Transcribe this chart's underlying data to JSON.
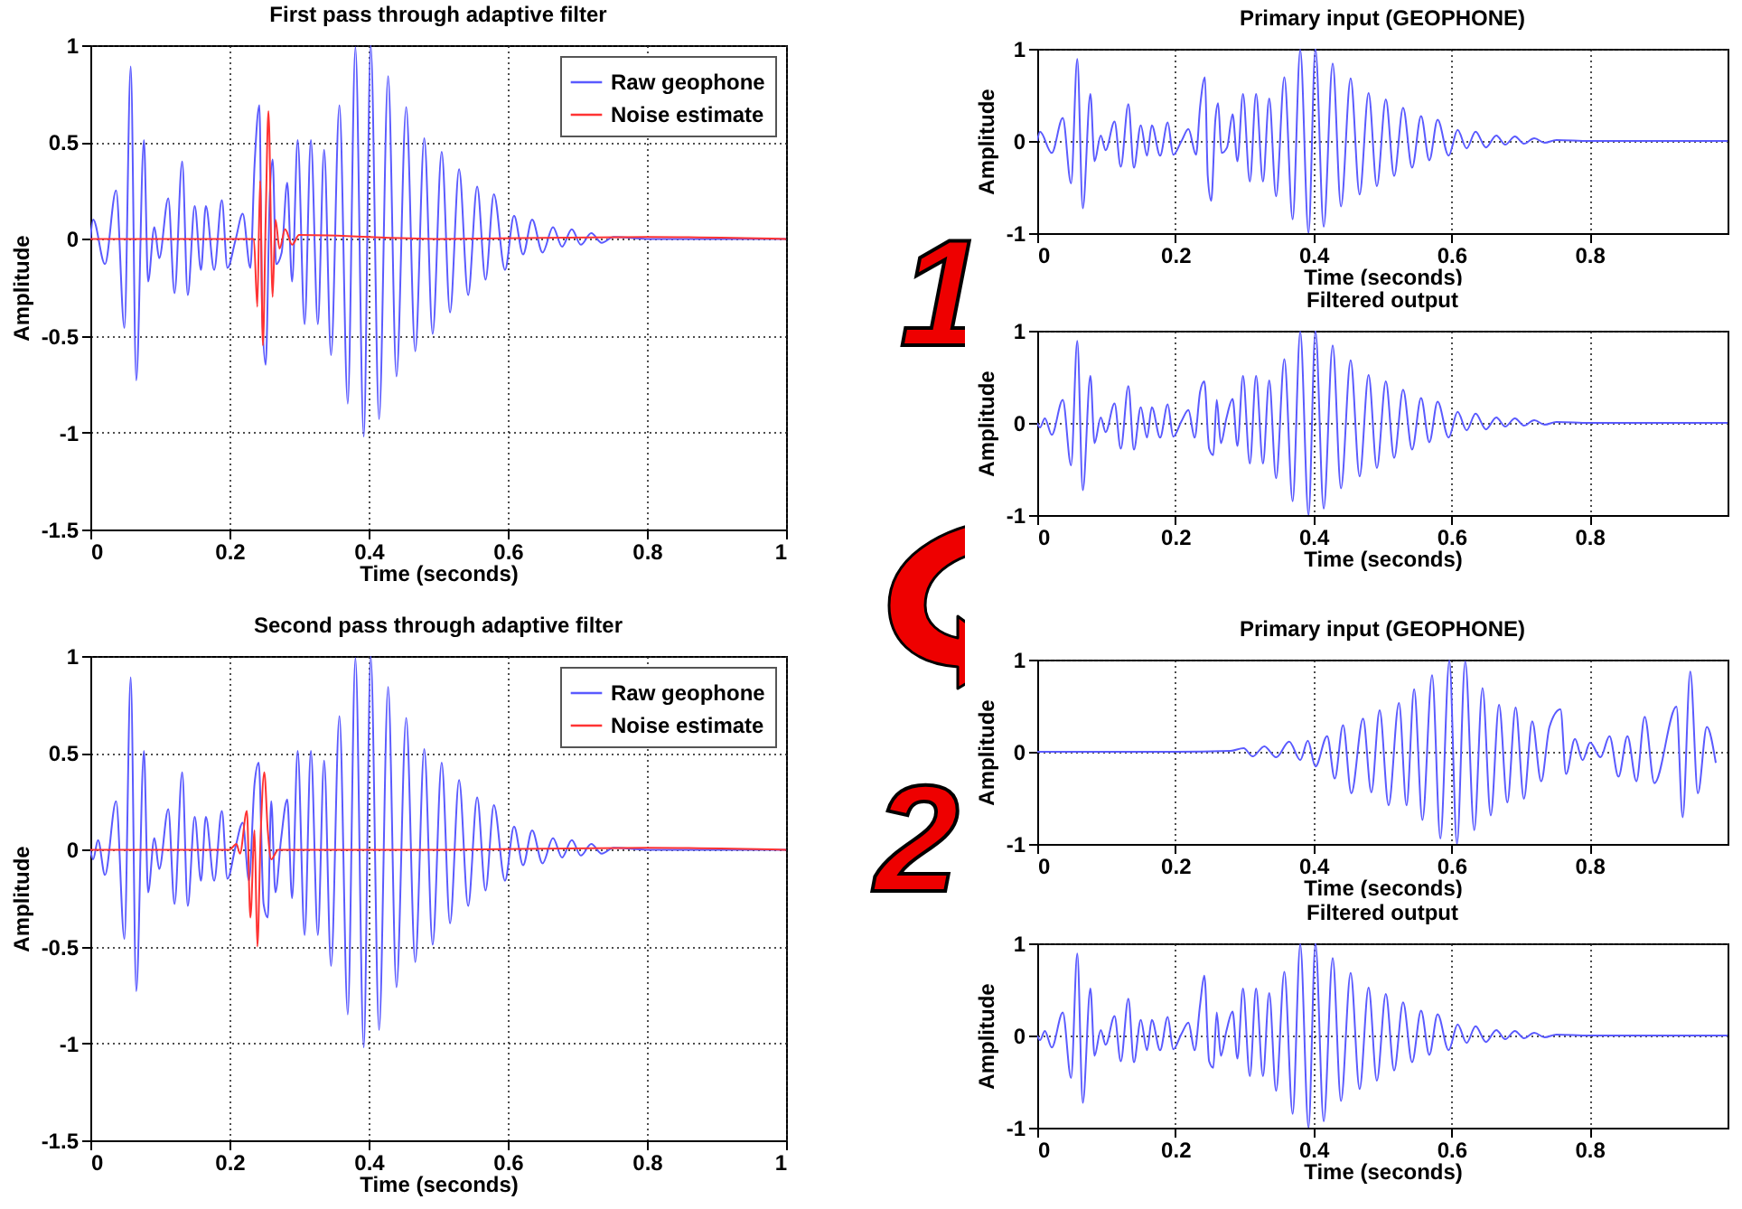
{
  "chart_data": [
    {
      "type": "line",
      "title": "First pass through adaptive filter",
      "xlabel": "Time (seconds)",
      "ylabel": "Amplitude",
      "xlim": [
        0,
        1
      ],
      "xticks": [
        0,
        0.2,
        0.4,
        0.6,
        0.8,
        1
      ],
      "ylim": [
        -1.5,
        1
      ],
      "yticks": [
        -1.5,
        -1,
        -0.5,
        0,
        0.5,
        1
      ],
      "grid": true,
      "legend": "top right",
      "series": [
        {
          "name": "Raw geophone",
          "color": "#5a5aff",
          "x": [
            0,
            0.004,
            0.021,
            0.037,
            0.049,
            0.058,
            0.066,
            0.077,
            0.083,
            0.092,
            0.099,
            0.112,
            0.121,
            0.132,
            0.14,
            0.15,
            0.159,
            0.166,
            0.178,
            0.189,
            0.197,
            0.209,
            0.219,
            0.23,
            0.236,
            0.243,
            0.247,
            0.252,
            0.258,
            0.262,
            0.267,
            0.275,
            0.283,
            0.29,
            0.298,
            0.308,
            0.317,
            0.327,
            0.336,
            0.346,
            0.358,
            0.37,
            0.381,
            0.393,
            0.403,
            0.415,
            0.428,
            0.44,
            0.454,
            0.467,
            0.48,
            0.492,
            0.505,
            0.517,
            0.53,
            0.543,
            0.556,
            0.568,
            0.58,
            0.596,
            0.609,
            0.622,
            0.635,
            0.65,
            0.665,
            0.678,
            0.692,
            0.705,
            0.72,
            0.735,
            0.752,
            0.8,
            0.9,
            1
          ],
          "values": [
            0,
            0.1,
            -0.13,
            0.25,
            -0.46,
            0.89,
            -0.73,
            0.51,
            -0.22,
            0.06,
            -0.1,
            0.21,
            -0.28,
            0.4,
            -0.29,
            0.17,
            -0.16,
            0.17,
            -0.16,
            0.2,
            -0.15,
            0,
            0.13,
            -0.15,
            0.38,
            0.69,
            -0.38,
            -0.65,
            0.23,
            0.41,
            -0.13,
            -0.07,
            0.29,
            -0.22,
            0.51,
            -0.44,
            0.51,
            -0.44,
            0.46,
            -0.6,
            0.69,
            -0.85,
            0.99,
            -1.02,
            1,
            -0.93,
            0.84,
            -0.71,
            0.68,
            -0.58,
            0.52,
            -0.49,
            0.45,
            -0.38,
            0.36,
            -0.29,
            0.27,
            -0.21,
            0.23,
            -0.16,
            0.12,
            -0.08,
            0.1,
            -0.07,
            0.06,
            -0.04,
            0.05,
            -0.03,
            0.03,
            -0.02,
            0.01,
            0,
            0,
            0
          ]
        },
        {
          "name": "Noise estimate",
          "color": "#ff3333",
          "x": [
            0,
            0.235,
            0.24,
            0.244,
            0.248,
            0.252,
            0.256,
            0.262,
            0.266,
            0.272,
            0.28,
            0.29,
            0.3,
            0.5,
            0.8,
            1
          ],
          "values": [
            0,
            0,
            -0.35,
            0.3,
            -0.55,
            0.1,
            0.66,
            -0.3,
            0.1,
            -0.05,
            0.05,
            -0.03,
            0.02,
            0,
            0.01,
            0
          ]
        }
      ]
    },
    {
      "type": "line",
      "title": "Second pass through adaptive filter",
      "xlabel": "Time (seconds)",
      "ylabel": "Amplitude",
      "xlim": [
        0,
        1
      ],
      "xticks": [
        0,
        0.2,
        0.4,
        0.6,
        0.8,
        1
      ],
      "ylim": [
        -1.5,
        1
      ],
      "yticks": [
        -1.5,
        -1,
        -0.5,
        0,
        0.5,
        1
      ],
      "grid": true,
      "legend": "top right",
      "series": [
        {
          "name": "Raw geophone",
          "color": "#5a5aff",
          "x": [
            0,
            0.004,
            0.011,
            0.021,
            0.037,
            0.049,
            0.058,
            0.066,
            0.077,
            0.083,
            0.092,
            0.099,
            0.112,
            0.121,
            0.132,
            0.14,
            0.15,
            0.159,
            0.166,
            0.178,
            0.189,
            0.197,
            0.209,
            0.219,
            0.228,
            0.236,
            0.242,
            0.249,
            0.255,
            0.26,
            0.266,
            0.274,
            0.283,
            0.29,
            0.298,
            0.308,
            0.317,
            0.327,
            0.336,
            0.346,
            0.358,
            0.37,
            0.381,
            0.393,
            0.403,
            0.415,
            0.428,
            0.44,
            0.454,
            0.467,
            0.48,
            0.492,
            0.505,
            0.517,
            0.53,
            0.543,
            0.556,
            0.568,
            0.58,
            0.596,
            0.609,
            0.622,
            0.635,
            0.65,
            0.665,
            0.678,
            0.692,
            0.705,
            0.72,
            0.735,
            0.752,
            0.8,
            0.9,
            1
          ],
          "values": [
            0,
            -0.05,
            0.05,
            -0.13,
            0.25,
            -0.46,
            0.89,
            -0.73,
            0.51,
            -0.22,
            0.06,
            -0.1,
            0.21,
            -0.28,
            0.4,
            -0.29,
            0.17,
            -0.16,
            0.17,
            -0.16,
            0.2,
            -0.15,
            0.02,
            0.14,
            -0.16,
            0.34,
            0.45,
            -0.28,
            -0.35,
            0.25,
            -0.22,
            0.05,
            0.26,
            -0.25,
            0.51,
            -0.44,
            0.51,
            -0.44,
            0.46,
            -0.6,
            0.69,
            -0.85,
            0.99,
            -1.02,
            1,
            -0.93,
            0.84,
            -0.71,
            0.68,
            -0.58,
            0.52,
            -0.49,
            0.45,
            -0.38,
            0.36,
            -0.29,
            0.27,
            -0.21,
            0.23,
            -0.16,
            0.12,
            -0.08,
            0.1,
            -0.07,
            0.06,
            -0.04,
            0.05,
            -0.03,
            0.03,
            -0.02,
            0.01,
            0,
            0,
            0
          ]
        },
        {
          "name": "Noise estimate",
          "color": "#ff3333",
          "x": [
            0,
            0.2,
            0.21,
            0.215,
            0.225,
            0.23,
            0.236,
            0.24,
            0.245,
            0.25,
            0.255,
            0.26,
            0.27,
            0.5,
            0.8,
            1
          ],
          "values": [
            0,
            0,
            0.03,
            -0.02,
            0.2,
            -0.35,
            0.1,
            -0.5,
            0.1,
            0.4,
            0.1,
            -0.05,
            0,
            0,
            0.01,
            0
          ]
        }
      ]
    },
    {
      "type": "line",
      "title": "Primary input (GEOPHONE)",
      "xlabel": "Time (seconds)",
      "ylabel": "Amplitude",
      "xlim": [
        0,
        1
      ],
      "xticks": [
        0,
        0.2,
        0.4,
        0.6,
        0.8
      ],
      "ylim": [
        -1,
        1
      ],
      "yticks": [
        -1,
        0,
        1
      ],
      "grid": true,
      "annotations": [
        "1"
      ],
      "series": [
        {
          "color": "#5a5aff",
          "x": [
            0,
            0.004,
            0.021,
            0.037,
            0.049,
            0.058,
            0.066,
            0.077,
            0.083,
            0.092,
            0.099,
            0.112,
            0.121,
            0.132,
            0.14,
            0.15,
            0.159,
            0.166,
            0.178,
            0.189,
            0.197,
            0.209,
            0.219,
            0.23,
            0.236,
            0.243,
            0.247,
            0.252,
            0.258,
            0.262,
            0.267,
            0.275,
            0.283,
            0.29,
            0.298,
            0.308,
            0.317,
            0.327,
            0.336,
            0.346,
            0.358,
            0.37,
            0.381,
            0.393,
            0.403,
            0.415,
            0.428,
            0.44,
            0.454,
            0.467,
            0.48,
            0.492,
            0.505,
            0.517,
            0.53,
            0.543,
            0.556,
            0.568,
            0.58,
            0.596,
            0.609,
            0.622,
            0.635,
            0.65,
            0.665,
            0.678,
            0.692,
            0.705,
            0.72,
            0.735,
            0.752,
            0.8,
            0.9,
            1
          ],
          "values": [
            0,
            0.1,
            -0.13,
            0.25,
            -0.46,
            0.89,
            -0.73,
            0.51,
            -0.22,
            0.06,
            -0.1,
            0.21,
            -0.28,
            0.4,
            -0.29,
            0.17,
            -0.16,
            0.17,
            -0.16,
            0.2,
            -0.15,
            0,
            0.13,
            -0.15,
            0.38,
            0.69,
            -0.38,
            -0.65,
            0.23,
            0.41,
            -0.13,
            -0.07,
            0.29,
            -0.22,
            0.51,
            -0.44,
            0.51,
            -0.44,
            0.46,
            -0.6,
            0.69,
            -0.85,
            0.99,
            -1,
            1,
            -0.93,
            0.84,
            -0.71,
            0.68,
            -0.58,
            0.52,
            -0.49,
            0.45,
            -0.38,
            0.36,
            -0.29,
            0.27,
            -0.21,
            0.23,
            -0.16,
            0.12,
            -0.08,
            0.1,
            -0.07,
            0.06,
            -0.04,
            0.05,
            -0.03,
            0.03,
            -0.02,
            0.01,
            0,
            0,
            0
          ]
        }
      ]
    },
    {
      "type": "line",
      "title": "Filtered output",
      "xlabel": "Time (seconds)",
      "ylabel": "Amplitude",
      "xlim": [
        0,
        1
      ],
      "xticks": [
        0,
        0.2,
        0.4,
        0.6,
        0.8
      ],
      "ylim": [
        -1,
        1
      ],
      "yticks": [
        -1,
        0,
        1
      ],
      "grid": true,
      "series": [
        {
          "color": "#5a5aff",
          "x": [
            0,
            0.004,
            0.011,
            0.021,
            0.037,
            0.049,
            0.058,
            0.066,
            0.077,
            0.083,
            0.092,
            0.099,
            0.112,
            0.121,
            0.132,
            0.14,
            0.15,
            0.159,
            0.166,
            0.178,
            0.189,
            0.197,
            0.209,
            0.219,
            0.228,
            0.236,
            0.242,
            0.249,
            0.255,
            0.26,
            0.266,
            0.274,
            0.283,
            0.29,
            0.298,
            0.308,
            0.317,
            0.327,
            0.336,
            0.346,
            0.358,
            0.37,
            0.381,
            0.393,
            0.403,
            0.415,
            0.428,
            0.44,
            0.454,
            0.467,
            0.48,
            0.492,
            0.505,
            0.517,
            0.53,
            0.543,
            0.556,
            0.568,
            0.58,
            0.596,
            0.609,
            0.622,
            0.635,
            0.65,
            0.665,
            0.678,
            0.692,
            0.705,
            0.72,
            0.735,
            0.752,
            0.8,
            0.9,
            1
          ],
          "values": [
            0,
            -0.05,
            0.05,
            -0.13,
            0.25,
            -0.46,
            0.89,
            -0.73,
            0.51,
            -0.22,
            0.06,
            -0.1,
            0.21,
            -0.28,
            0.4,
            -0.29,
            0.17,
            -0.16,
            0.17,
            -0.16,
            0.2,
            -0.15,
            0.02,
            0.14,
            -0.16,
            0.34,
            0.45,
            -0.28,
            -0.35,
            0.25,
            -0.22,
            0.05,
            0.26,
            -0.25,
            0.51,
            -0.44,
            0.51,
            -0.44,
            0.46,
            -0.6,
            0.69,
            -0.85,
            0.99,
            -1,
            1,
            -0.93,
            0.84,
            -0.71,
            0.68,
            -0.58,
            0.52,
            -0.49,
            0.45,
            -0.38,
            0.36,
            -0.29,
            0.27,
            -0.21,
            0.23,
            -0.16,
            0.12,
            -0.08,
            0.1,
            -0.07,
            0.06,
            -0.04,
            0.05,
            -0.03,
            0.03,
            -0.02,
            0.01,
            0,
            0,
            0
          ]
        }
      ]
    },
    {
      "type": "line",
      "title": "Primary input (GEOPHONE)",
      "xlabel": "Time (seconds)",
      "ylabel": "Amplitude",
      "xlim": [
        0,
        1
      ],
      "xticks": [
        0,
        0.2,
        0.4,
        0.6,
        0.8
      ],
      "ylim": [
        -1,
        1
      ],
      "yticks": [
        -1,
        0,
        1
      ],
      "grid": true,
      "annotations": [
        "2"
      ],
      "series": [
        {
          "color": "#5a5aff",
          "x": [
            0,
            0.1,
            0.2,
            0.28,
            0.299,
            0.312,
            0.329,
            0.346,
            0.365,
            0.381,
            0.392,
            0.403,
            0.42,
            0.431,
            0.443,
            0.455,
            0.472,
            0.484,
            0.496,
            0.509,
            0.524,
            0.535,
            0.546,
            0.558,
            0.572,
            0.584,
            0.597,
            0.608,
            0.62,
            0.633,
            0.645,
            0.657,
            0.669,
            0.681,
            0.693,
            0.705,
            0.717,
            0.73,
            0.742,
            0.758,
            0.766,
            0.779,
            0.79,
            0.801,
            0.816,
            0.829,
            0.842,
            0.855,
            0.868,
            0.88,
            0.894,
            0.926,
            0.935,
            0.946,
            0.957,
            0.97,
            0.983
          ],
          "values": [
            0,
            0,
            0,
            0.01,
            0.04,
            -0.05,
            0.06,
            -0.06,
            0.11,
            -0.09,
            0.12,
            -0.16,
            0.17,
            -0.29,
            0.29,
            -0.45,
            0.36,
            -0.44,
            0.45,
            -0.58,
            0.53,
            -0.58,
            0.68,
            -0.74,
            0.83,
            -0.94,
            0.99,
            -1,
            0.98,
            -0.85,
            0.69,
            -0.69,
            0.51,
            -0.55,
            0.48,
            -0.51,
            0.33,
            -0.32,
            0.27,
            0.46,
            -0.24,
            0.14,
            -0.09,
            0.1,
            -0.06,
            0.17,
            -0.27,
            0.17,
            -0.32,
            0.38,
            -0.34,
            0.49,
            -0.71,
            0.87,
            -0.45,
            0.27,
            -0.12
          ]
        }
      ]
    },
    {
      "type": "line",
      "title": "Filtered output",
      "xlabel": "Time (seconds)",
      "ylabel": "Amplitude",
      "xlim": [
        0,
        1
      ],
      "xticks": [
        0,
        0.2,
        0.4,
        0.6,
        0.8
      ],
      "ylim": [
        -1,
        1
      ],
      "yticks": [
        -1,
        0,
        1
      ],
      "grid": true,
      "series": [
        {
          "color": "#5a5aff",
          "x": [
            0,
            0.004,
            0.011,
            0.021,
            0.037,
            0.049,
            0.058,
            0.066,
            0.077,
            0.083,
            0.092,
            0.099,
            0.112,
            0.121,
            0.132,
            0.14,
            0.15,
            0.159,
            0.166,
            0.178,
            0.189,
            0.197,
            0.209,
            0.219,
            0.228,
            0.236,
            0.242,
            0.249,
            0.255,
            0.26,
            0.266,
            0.274,
            0.283,
            0.29,
            0.298,
            0.308,
            0.317,
            0.327,
            0.336,
            0.346,
            0.358,
            0.37,
            0.381,
            0.393,
            0.403,
            0.415,
            0.428,
            0.44,
            0.454,
            0.467,
            0.48,
            0.492,
            0.505,
            0.517,
            0.53,
            0.543,
            0.556,
            0.568,
            0.58,
            0.596,
            0.609,
            0.622,
            0.635,
            0.65,
            0.665,
            0.678,
            0.692,
            0.705,
            0.72,
            0.735,
            0.752,
            0.8,
            0.9,
            1
          ],
          "values": [
            0,
            -0.05,
            0.05,
            -0.13,
            0.25,
            -0.46,
            0.89,
            -0.73,
            0.51,
            -0.22,
            0.06,
            -0.1,
            0.21,
            -0.28,
            0.4,
            -0.29,
            0.17,
            -0.16,
            0.17,
            -0.16,
            0.2,
            -0.15,
            0.02,
            0.14,
            -0.16,
            0.34,
            0.65,
            -0.28,
            -0.35,
            0.25,
            -0.22,
            0.05,
            0.26,
            -0.25,
            0.51,
            -0.44,
            0.51,
            -0.44,
            0.46,
            -0.6,
            0.69,
            -0.85,
            0.99,
            -1,
            1,
            -0.93,
            0.84,
            -0.71,
            0.68,
            -0.58,
            0.52,
            -0.49,
            0.45,
            -0.38,
            0.36,
            -0.29,
            0.27,
            -0.21,
            0.23,
            -0.16,
            0.12,
            -0.08,
            0.1,
            -0.07,
            0.06,
            -0.04,
            0.05,
            -0.03,
            0.03,
            -0.02,
            0.01,
            0,
            0,
            0
          ]
        }
      ]
    }
  ]
}
